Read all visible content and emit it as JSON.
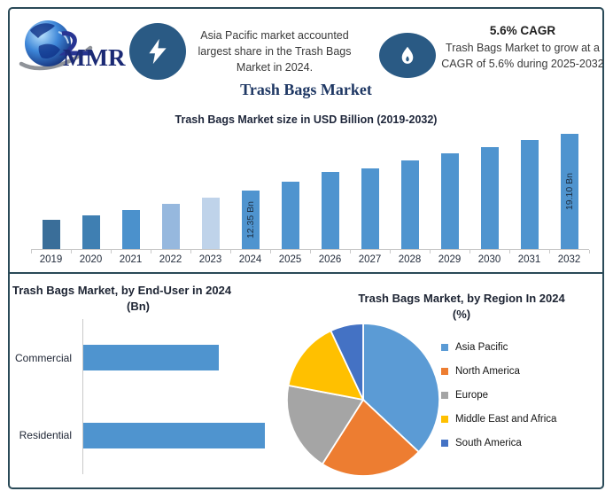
{
  "brand": {
    "logo_text": "MMR"
  },
  "header": {
    "highlight_share": {
      "icon": "lightning-icon",
      "text": "Asia Pacific market accounted largest share in the Trash Bags Market in 2024."
    },
    "highlight_cagr": {
      "icon": "flame-icon",
      "title": "5.6% CAGR",
      "text": "Trash Bags Market to grow at a CAGR of 5.6% during 2025-2032"
    }
  },
  "page_title": "Trash Bags Market",
  "colors": {
    "frame_border": "#2A4A58",
    "icon_circle": "#2A5A84",
    "title_navy": "#1F3864",
    "bar_blue": "#4F94CF",
    "axis_gray": "#C9C9C9"
  },
  "chart_data": [
    {
      "type": "bar",
      "title": "Trash Bags Market size in USD Billion (2019-2032)",
      "categories": [
        "2019",
        "2020",
        "2021",
        "2022",
        "2023",
        "2024",
        "2025",
        "2026",
        "2027",
        "2028",
        "2029",
        "2030",
        "2031",
        "2032"
      ],
      "values": [
        8.9,
        9.4,
        10.0,
        10.8,
        11.5,
        12.35,
        13.4,
        14.6,
        15.0,
        15.9,
        16.8,
        17.5,
        18.3,
        19.1
      ],
      "unit": "USD Billion",
      "xlabel": "",
      "ylabel": "",
      "ylim": [
        5.4,
        19.8
      ],
      "grid": false,
      "annotated_bars": [
        {
          "year": "2024",
          "label": "12.35 Bn"
        },
        {
          "year": "2032",
          "label": "19.10 Bn"
        }
      ],
      "color_default": "#4F94CF",
      "color_overrides": {
        "2019": "#3A6E99",
        "2020": "#3F7FB2",
        "2021": "#4B91CC",
        "2022": "#96B8DE",
        "2023": "#BFD3EA"
      }
    },
    {
      "type": "bar",
      "orientation": "horizontal",
      "title": "Trash Bags Market, by End-User in 2024",
      "subtitle": "(Bn)",
      "categories": [
        "Commercial",
        "Residential"
      ],
      "values": [
        5.3,
        7.1
      ],
      "unit": "USD Billion",
      "xlim": [
        0,
        10
      ],
      "grid": false,
      "color": "#4F94CF"
    },
    {
      "type": "pie",
      "title": "Trash Bags Market, by Region In 2024",
      "subtitle": "(%)",
      "labels": [
        "Asia Pacific",
        "North America",
        "Europe",
        "Middle East and Africa",
        "South America"
      ],
      "values": [
        37,
        22,
        19,
        15,
        7
      ],
      "colors": [
        "#5B9BD5",
        "#ED7D31",
        "#A5A5A5",
        "#FFC000",
        "#4472C4"
      ],
      "legend_position": "right",
      "start_angle_deg": -90
    }
  ]
}
